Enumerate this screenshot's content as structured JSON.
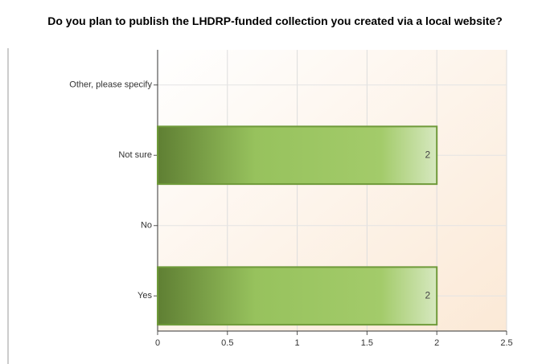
{
  "chart_data": {
    "type": "hbar",
    "title": "Do you plan to publish the LHDRP-funded collection you created via a local website?",
    "categories": [
      "Other, please specify",
      "Not sure",
      "No",
      "Yes"
    ],
    "values": [
      0,
      2,
      0,
      2
    ],
    "xlim": [
      0,
      2.5
    ],
    "xticks": [
      0,
      0.5,
      1,
      1.5,
      2,
      2.5
    ],
    "grid": true,
    "color": "#8dbb55"
  }
}
